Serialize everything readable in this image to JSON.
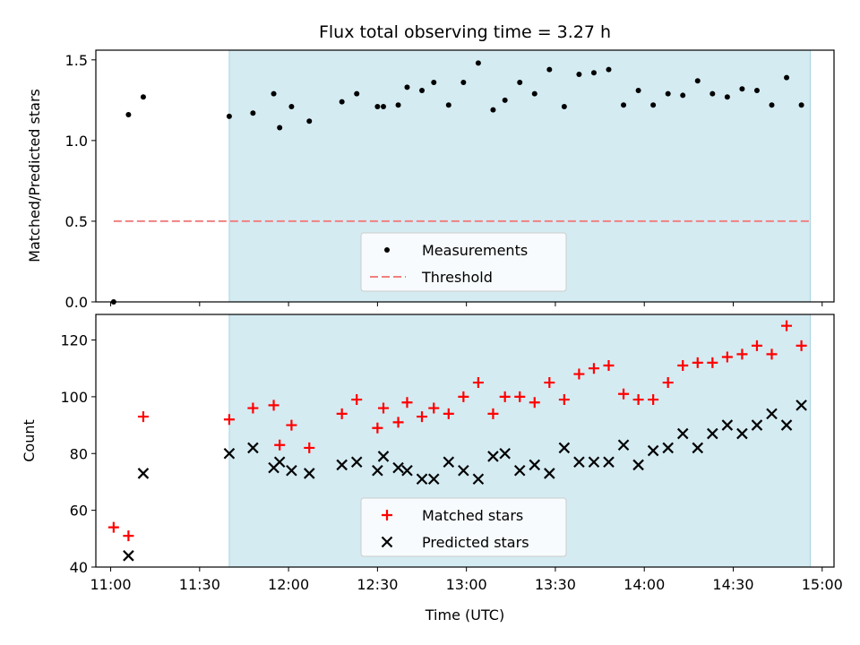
{
  "title": "Flux total observing time = 3.27 h",
  "colors": {
    "measurement": "#000000",
    "threshold": "#f08080",
    "matched": "#ff0000",
    "predicted": "#000000",
    "highlight": "#d4ebf2"
  },
  "chart_data": [
    {
      "type": "scatter",
      "ylabel": "Matched/Predicted stars",
      "ylim": [
        0,
        1.56
      ],
      "yticks": [
        0,
        0.5,
        1.0,
        1.5
      ],
      "ytick_labels": [
        "0.0",
        "0.5",
        "1.0",
        "1.5"
      ],
      "xlim": [
        "10:55",
        "15:04"
      ],
      "highlight_span": [
        "11:40",
        "14:56"
      ],
      "legend_position": "bottom-center",
      "series": [
        {
          "name": "Measurements",
          "marker": "dot",
          "points": [
            [
              "11:01",
              0.0
            ],
            [
              "11:06",
              1.16
            ],
            [
              "11:11",
              1.27
            ],
            [
              "11:40",
              1.15
            ],
            [
              "11:48",
              1.17
            ],
            [
              "11:55",
              1.29
            ],
            [
              "11:57",
              1.08
            ],
            [
              "12:01",
              1.21
            ],
            [
              "12:07",
              1.12
            ],
            [
              "12:18",
              1.24
            ],
            [
              "12:23",
              1.29
            ],
            [
              "12:30",
              1.21
            ],
            [
              "12:32",
              1.21
            ],
            [
              "12:37",
              1.22
            ],
            [
              "12:40",
              1.33
            ],
            [
              "12:45",
              1.31
            ],
            [
              "12:49",
              1.36
            ],
            [
              "12:54",
              1.22
            ],
            [
              "12:59",
              1.36
            ],
            [
              "13:04",
              1.48
            ],
            [
              "13:09",
              1.19
            ],
            [
              "13:13",
              1.25
            ],
            [
              "13:18",
              1.36
            ],
            [
              "13:23",
              1.29
            ],
            [
              "13:28",
              1.44
            ],
            [
              "13:33",
              1.21
            ],
            [
              "13:38",
              1.41
            ],
            [
              "13:43",
              1.42
            ],
            [
              "13:48",
              1.44
            ],
            [
              "13:53",
              1.22
            ],
            [
              "13:58",
              1.31
            ],
            [
              "14:03",
              1.22
            ],
            [
              "14:08",
              1.29
            ],
            [
              "14:13",
              1.28
            ],
            [
              "14:18",
              1.37
            ],
            [
              "14:23",
              1.29
            ],
            [
              "14:28",
              1.27
            ],
            [
              "14:33",
              1.32
            ],
            [
              "14:38",
              1.31
            ],
            [
              "14:43",
              1.22
            ],
            [
              "14:48",
              1.39
            ],
            [
              "14:53",
              1.22
            ]
          ]
        },
        {
          "name": "Threshold",
          "style": "dashed-line",
          "points": [
            [
              "11:01",
              0.5
            ],
            [
              "14:56",
              0.5
            ]
          ]
        }
      ]
    },
    {
      "type": "scatter",
      "xlabel": "Time (UTC)",
      "ylabel": "Count",
      "ylim": [
        40,
        129
      ],
      "yticks": [
        40,
        60,
        80,
        100,
        120
      ],
      "ytick_labels": [
        "40",
        "60",
        "80",
        "100",
        "120"
      ],
      "xlim": [
        "10:55",
        "15:04"
      ],
      "xticks": [
        "11:00",
        "11:30",
        "12:00",
        "12:30",
        "13:00",
        "13:30",
        "14:00",
        "14:30",
        "15:00"
      ],
      "highlight_span": [
        "11:40",
        "14:56"
      ],
      "legend_position": "bottom-center",
      "series": [
        {
          "name": "Matched stars",
          "marker": "plus",
          "points": [
            [
              "11:01",
              54
            ],
            [
              "11:06",
              51
            ],
            [
              "11:11",
              93
            ],
            [
              "11:40",
              92
            ],
            [
              "11:48",
              96
            ],
            [
              "11:55",
              97
            ],
            [
              "11:57",
              83
            ],
            [
              "12:01",
              90
            ],
            [
              "12:07",
              82
            ],
            [
              "12:18",
              94
            ],
            [
              "12:23",
              99
            ],
            [
              "12:30",
              89
            ],
            [
              "12:32",
              96
            ],
            [
              "12:37",
              91
            ],
            [
              "12:40",
              98
            ],
            [
              "12:45",
              93
            ],
            [
              "12:49",
              96
            ],
            [
              "12:54",
              94
            ],
            [
              "12:59",
              100
            ],
            [
              "13:04",
              105
            ],
            [
              "13:09",
              94
            ],
            [
              "13:13",
              100
            ],
            [
              "13:18",
              100
            ],
            [
              "13:23",
              98
            ],
            [
              "13:28",
              105
            ],
            [
              "13:33",
              99
            ],
            [
              "13:38",
              108
            ],
            [
              "13:43",
              110
            ],
            [
              "13:48",
              111
            ],
            [
              "13:53",
              101
            ],
            [
              "13:58",
              99
            ],
            [
              "14:03",
              99
            ],
            [
              "14:08",
              105
            ],
            [
              "14:13",
              111
            ],
            [
              "14:18",
              112
            ],
            [
              "14:23",
              112
            ],
            [
              "14:28",
              114
            ],
            [
              "14:33",
              115
            ],
            [
              "14:38",
              118
            ],
            [
              "14:43",
              115
            ],
            [
              "14:48",
              125
            ],
            [
              "14:53",
              118
            ]
          ]
        },
        {
          "name": "Predicted stars",
          "marker": "cross",
          "points": [
            [
              "11:06",
              44
            ],
            [
              "11:11",
              73
            ],
            [
              "11:40",
              80
            ],
            [
              "11:48",
              82
            ],
            [
              "11:55",
              75
            ],
            [
              "11:57",
              77
            ],
            [
              "12:01",
              74
            ],
            [
              "12:07",
              73
            ],
            [
              "12:18",
              76
            ],
            [
              "12:23",
              77
            ],
            [
              "12:30",
              74
            ],
            [
              "12:32",
              79
            ],
            [
              "12:37",
              75
            ],
            [
              "12:40",
              74
            ],
            [
              "12:45",
              71
            ],
            [
              "12:49",
              71
            ],
            [
              "12:54",
              77
            ],
            [
              "12:59",
              74
            ],
            [
              "13:04",
              71
            ],
            [
              "13:09",
              79
            ],
            [
              "13:13",
              80
            ],
            [
              "13:18",
              74
            ],
            [
              "13:23",
              76
            ],
            [
              "13:28",
              73
            ],
            [
              "13:33",
              82
            ],
            [
              "13:38",
              77
            ],
            [
              "13:43",
              77
            ],
            [
              "13:48",
              77
            ],
            [
              "13:53",
              83
            ],
            [
              "13:58",
              76
            ],
            [
              "14:03",
              81
            ],
            [
              "14:08",
              82
            ],
            [
              "14:13",
              87
            ],
            [
              "14:18",
              82
            ],
            [
              "14:23",
              87
            ],
            [
              "14:28",
              90
            ],
            [
              "14:33",
              87
            ],
            [
              "14:38",
              90
            ],
            [
              "14:43",
              94
            ],
            [
              "14:48",
              90
            ],
            [
              "14:53",
              97
            ]
          ]
        }
      ]
    }
  ]
}
